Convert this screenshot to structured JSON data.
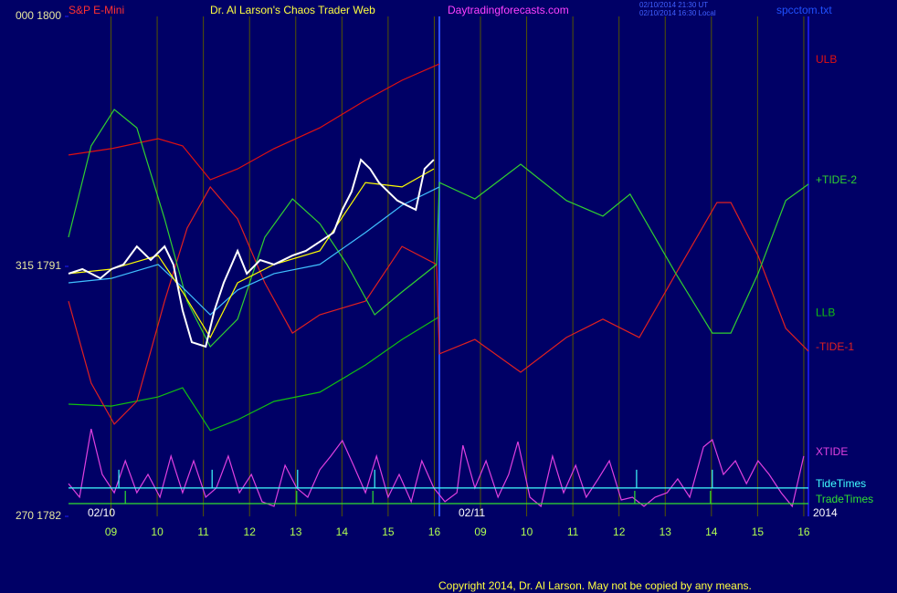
{
  "chart_data": {
    "type": "line",
    "title": "Dr. Al Larson's Chaos Trader Web",
    "annotations": [
      "S&P E-Mini",
      "Daytradingforecasts.com",
      "02/10/2014 21:30 UT",
      "02/10/2014 16:30 Local",
      "spcctom.txt",
      "02/10",
      "02/11",
      "2014",
      "Copyright 2014, Dr. Al Larson. May not be copied by any means."
    ],
    "xlim": [
      0.08,
      16.1
    ],
    "xticks": [
      {
        "value": 1,
        "label": "09"
      },
      {
        "value": 2,
        "label": "10"
      },
      {
        "value": 3,
        "label": "11"
      },
      {
        "value": 4,
        "label": "12"
      },
      {
        "value": 5,
        "label": "13"
      },
      {
        "value": 6,
        "label": "14"
      },
      {
        "value": 7,
        "label": "15"
      },
      {
        "value": 8,
        "label": "16"
      },
      {
        "value": 9,
        "label": "09"
      },
      {
        "value": 10,
        "label": "10"
      },
      {
        "value": 11,
        "label": "11"
      },
      {
        "value": 12,
        "label": "12"
      },
      {
        "value": 13,
        "label": "13"
      },
      {
        "value": 14,
        "label": "14"
      },
      {
        "value": 15,
        "label": "15"
      },
      {
        "value": 16,
        "label": "16"
      }
    ],
    "ylim": [
      1782,
      1800
    ],
    "yticks": [
      {
        "value": 1782,
        "label": "270 1782"
      },
      {
        "value": 1791,
        "label": "315 1791"
      },
      {
        "value": 1800,
        "label": "000 1800"
      }
    ],
    "grid": "vertical",
    "series": [
      {
        "name": "XTIDE",
        "color": "#e040e0",
        "x": [
          0.08,
          0.32,
          0.57,
          0.81,
          1.07,
          1.31,
          1.56,
          1.8,
          2.06,
          2.3,
          2.55,
          2.79,
          3.05,
          3.28,
          3.54,
          3.78,
          4.04,
          4.27,
          4.53,
          4.77,
          5.02,
          5.26,
          5.52,
          5.76,
          6.01,
          6.25,
          6.51,
          6.75,
          7.0,
          7.24,
          7.5,
          7.73,
          7.99,
          8.23,
          8.49,
          8.62,
          8.88,
          9.12,
          9.38,
          9.61,
          9.81,
          10.07,
          10.31,
          10.56,
          10.8,
          11.06,
          11.29,
          11.55,
          11.79,
          12.05,
          12.29,
          12.54,
          12.78,
          13.04,
          13.27,
          13.53,
          13.83,
          14.02,
          14.26,
          14.52,
          14.76,
          15.01,
          15.25,
          15.51,
          15.75,
          16.0
        ],
        "values": [
          1783.18,
          1782.69,
          1785.15,
          1783.51,
          1782.85,
          1784.0,
          1782.85,
          1783.51,
          1782.69,
          1784.17,
          1782.85,
          1784.0,
          1782.69,
          1783.02,
          1784.17,
          1782.85,
          1783.51,
          1782.53,
          1782.36,
          1783.84,
          1783.02,
          1782.69,
          1783.68,
          1784.17,
          1784.73,
          1783.84,
          1782.85,
          1784.17,
          1782.69,
          1783.51,
          1782.53,
          1784.0,
          1783.02,
          1782.53,
          1782.85,
          1784.56,
          1783.02,
          1784.0,
          1782.69,
          1783.51,
          1784.69,
          1782.69,
          1782.36,
          1784.17,
          1782.85,
          1783.84,
          1782.69,
          1783.35,
          1784.0,
          1782.59,
          1782.69,
          1782.36,
          1782.69,
          1782.85,
          1783.35,
          1782.69,
          1784.5,
          1784.76,
          1783.51,
          1784.0,
          1783.18,
          1784.0,
          1783.51,
          1782.85,
          1782.36,
          1784.17
        ]
      },
      {
        "name": "TideTimes",
        "color": "#40ffff",
        "x": [
          0.08,
          1.17,
          1.17,
          1.17,
          3.19,
          3.19,
          3.19,
          5.04,
          5.04,
          5.04,
          6.71,
          6.71,
          6.71,
          12.38,
          12.38,
          12.38,
          14.02,
          14.02,
          14.02,
          16.1
        ],
        "values": [
          1783.02,
          1783.02,
          1783.68,
          1783.02,
          1783.02,
          1783.68,
          1783.02,
          1783.02,
          1783.68,
          1783.02,
          1783.02,
          1783.68,
          1783.02,
          1783.02,
          1783.68,
          1783.02,
          1783.02,
          1783.68,
          1783.02,
          1783.02
        ]
      },
      {
        "name": "TradeTimes",
        "color": "#30e030",
        "x": [
          0.08,
          1.31,
          1.31,
          1.31,
          5.02,
          5.02,
          5.02,
          6.67,
          6.67,
          6.67,
          12.34,
          12.34,
          12.34,
          13.98,
          13.98,
          13.98,
          16.1
        ],
        "values": [
          1782.46,
          1782.46,
          1782.92,
          1782.46,
          1782.46,
          1782.92,
          1782.46,
          1782.46,
          1782.92,
          1782.46,
          1782.46,
          1782.92,
          1782.46,
          1782.46,
          1782.92,
          1782.46,
          1782.46
        ]
      },
      {
        "name": "ULB",
        "color": "#e01010",
        "x": [
          0.08,
          1.01,
          2.02,
          2.55,
          3.15,
          3.74,
          4.53,
          5.52,
          6.51,
          7.3,
          8.11
        ],
        "values": [
          1795.01,
          1795.24,
          1795.6,
          1795.34,
          1794.12,
          1794.51,
          1795.24,
          1795.99,
          1796.98,
          1797.7,
          1798.29
        ]
      },
      {
        "name": "LLB",
        "color": "#10c010",
        "x": [
          0.08,
          1.01,
          2.02,
          2.55,
          3.15,
          3.74,
          4.53,
          5.52,
          6.51,
          7.3,
          8.11
        ],
        "values": [
          1786.04,
          1785.97,
          1786.3,
          1786.63,
          1785.09,
          1785.48,
          1786.14,
          1786.47,
          1787.45,
          1788.37,
          1789.19
        ]
      },
      {
        "name": "-TIDE-1",
        "color": "#e02020",
        "x": [
          0.08,
          0.57,
          1.07,
          1.56,
          2.16,
          2.65,
          3.15,
          3.74,
          4.33,
          4.93,
          5.52,
          6.51,
          7.3,
          8.05,
          8.11,
          8.88,
          9.87,
          10.86,
          11.65,
          12.44,
          13.23,
          14.12,
          14.42,
          15.01,
          15.61,
          16.1
        ],
        "values": [
          1789.75,
          1786.8,
          1785.32,
          1786.14,
          1789.75,
          1792.38,
          1793.86,
          1792.71,
          1790.41,
          1788.6,
          1789.26,
          1789.75,
          1791.72,
          1791.07,
          1787.85,
          1788.37,
          1787.19,
          1788.44,
          1789.1,
          1788.44,
          1790.74,
          1793.3,
          1793.3,
          1791.39,
          1788.77,
          1787.95
        ]
      },
      {
        "name": "+TIDE-2",
        "color": "#30d030",
        "x": [
          0.08,
          0.57,
          1.07,
          1.56,
          2.16,
          2.65,
          3.15,
          3.74,
          4.33,
          4.93,
          5.52,
          6.11,
          6.71,
          7.3,
          8.05,
          8.11,
          8.88,
          9.87,
          10.86,
          11.65,
          12.24,
          13.23,
          14.02,
          14.42,
          15.01,
          15.61,
          16.1
        ],
        "values": [
          1792.05,
          1795.34,
          1796.65,
          1795.99,
          1792.71,
          1789.75,
          1788.11,
          1789.1,
          1792.05,
          1793.43,
          1792.54,
          1791.07,
          1789.26,
          1790.08,
          1791.07,
          1794.02,
          1793.43,
          1794.68,
          1793.37,
          1792.81,
          1793.6,
          1790.74,
          1788.6,
          1788.6,
          1790.74,
          1793.37,
          1793.96
        ]
      },
      {
        "color": "#40c0ff",
        "x": [
          0.08,
          1.01,
          2.02,
          2.55,
          3.15,
          3.74,
          4.53,
          5.52,
          6.51,
          7.3,
          8.11
        ],
        "values": [
          1790.41,
          1790.57,
          1791.07,
          1790.24,
          1789.26,
          1790.15,
          1790.74,
          1791.07,
          1792.22,
          1793.2,
          1793.86
        ]
      },
      {
        "color": "#ffff00",
        "x": [
          0.08,
          1.01,
          2.02,
          2.55,
          3.15,
          3.74,
          4.53,
          5.52,
          6.51,
          7.3,
          7.99
        ],
        "values": [
          1790.74,
          1790.9,
          1791.39,
          1790.08,
          1788.44,
          1790.41,
          1791.07,
          1791.56,
          1794.02,
          1793.86,
          1794.51
        ]
      },
      {
        "color": "#ffffff",
        "x": [
          0.08,
          0.38,
          0.77,
          1.01,
          1.27,
          1.56,
          1.86,
          2.16,
          2.35,
          2.55,
          2.75,
          3.05,
          3.24,
          3.44,
          3.74,
          3.94,
          4.23,
          4.53,
          4.93,
          5.22,
          5.52,
          5.82,
          6.01,
          6.21,
          6.41,
          6.61,
          6.8,
          7.0,
          7.2,
          7.4,
          7.6,
          7.79,
          7.99
        ],
        "values": [
          1790.74,
          1790.9,
          1790.57,
          1790.9,
          1791.07,
          1791.72,
          1791.23,
          1791.72,
          1791.07,
          1789.42,
          1788.27,
          1788.11,
          1789.42,
          1790.41,
          1791.56,
          1790.74,
          1791.23,
          1791.07,
          1791.39,
          1791.56,
          1791.89,
          1792.22,
          1793.04,
          1793.69,
          1794.84,
          1794.51,
          1794.02,
          1793.69,
          1793.37,
          1793.2,
          1793.04,
          1794.51,
          1794.84
        ]
      }
    ]
  }
}
